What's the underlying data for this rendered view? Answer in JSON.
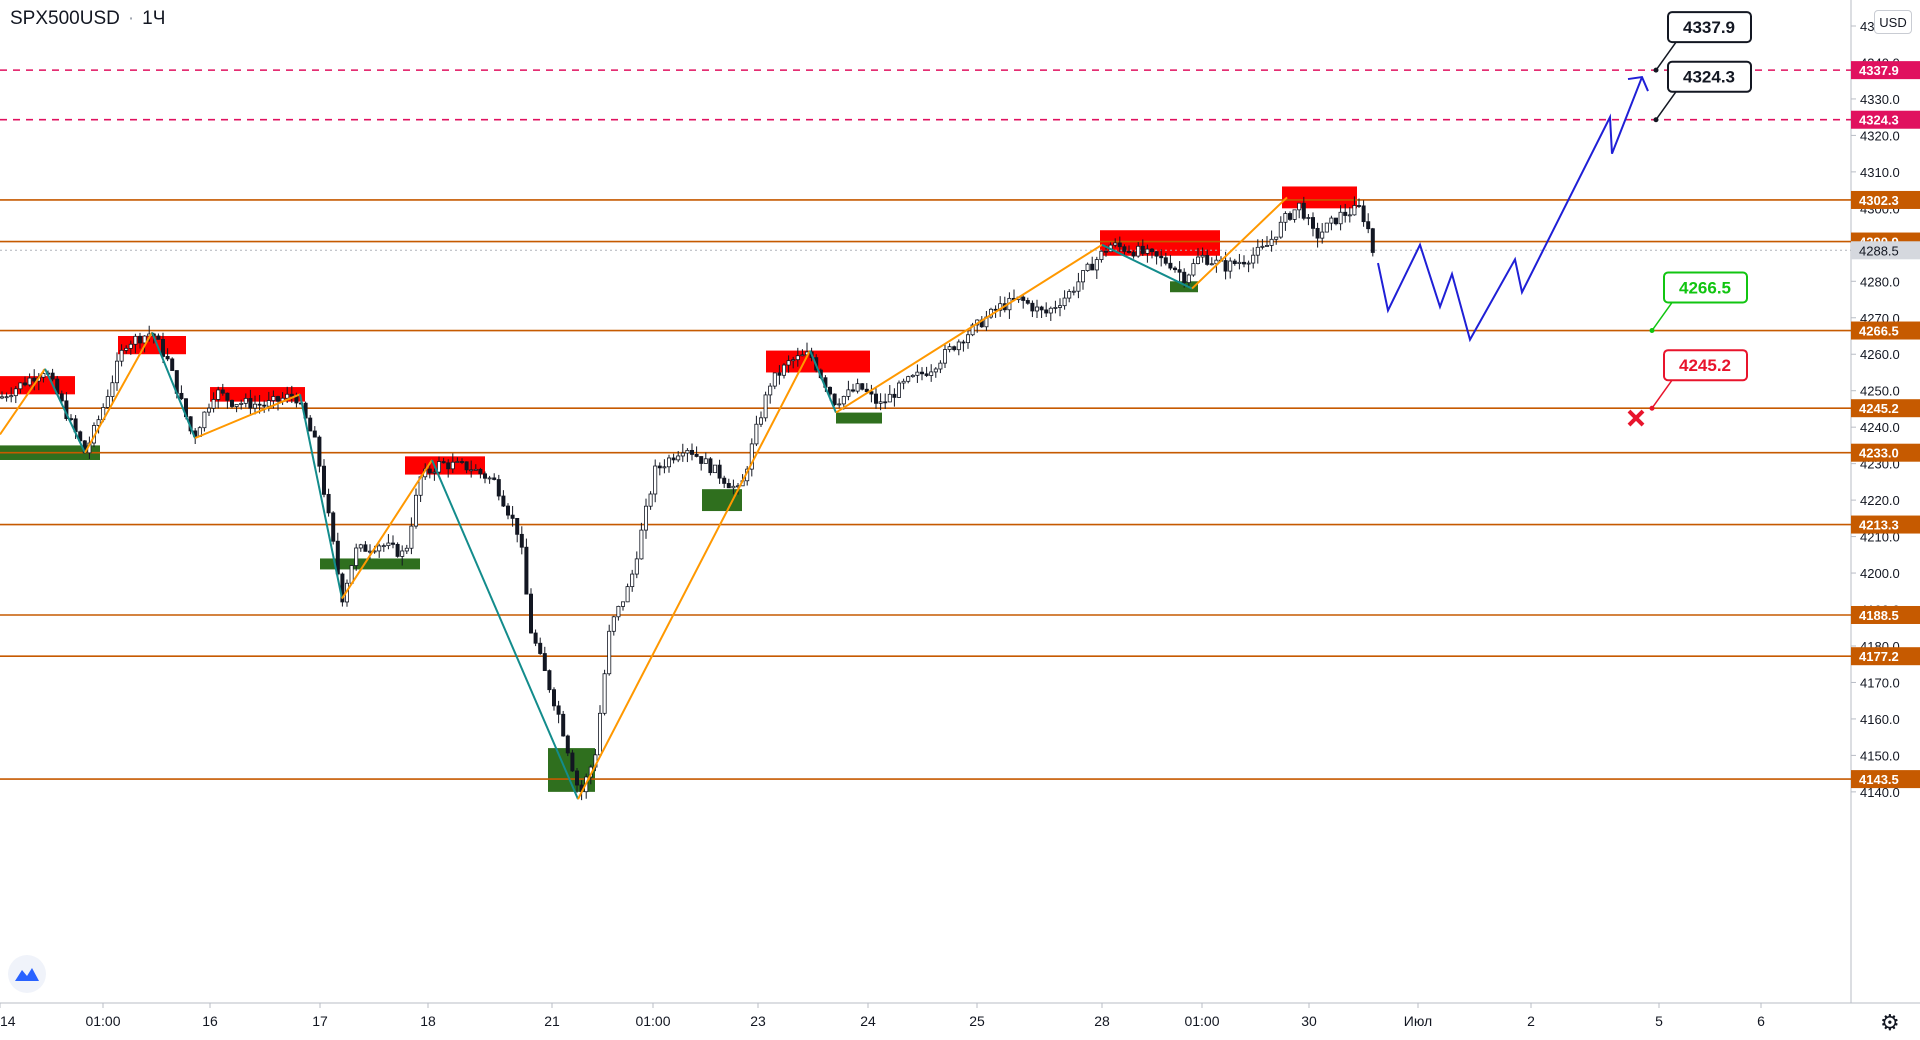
{
  "header": {
    "symbol": "SPX500USD",
    "separator": "·",
    "interval": "1Ч"
  },
  "currency": "USD",
  "colors": {
    "level": "#c65a00",
    "target": "#e0115f",
    "zigzag_up": "#ff9800",
    "zigzag_down": "#138c8c",
    "bull_zone": "#2f6f1e",
    "bear_zone": "#ff0000",
    "forecast": "#1f1fd6",
    "candle": "#131722",
    "last_price": "#b0b3ba",
    "callout_green": "#11c511",
    "callout_red": "#e8142c"
  },
  "chart_data": {
    "type": "candlestick",
    "ylim": [
      4137,
      4350
    ],
    "y_ticks": [
      4140,
      4150,
      4160,
      4170,
      4180,
      4190,
      4200,
      4210,
      4220,
      4230,
      4240,
      4250,
      4260,
      4270,
      4280,
      4290,
      4300,
      4310,
      4320,
      4330,
      4340,
      4350
    ],
    "y_tick_labels": [
      "4140.0",
      "4150.0",
      "4160.0",
      "4170.0",
      "4180.0",
      "4190.0",
      "4200.0",
      "4210.0",
      "4220.0",
      "4230.0",
      "4240.0",
      "4250.0",
      "4260.0",
      "4270.0",
      "4280.0",
      "4290.0",
      "4300.0",
      "4310.0",
      "4320.0",
      "4330.0",
      "4340.0",
      "4350.0"
    ],
    "x_range": [
      0,
      1851
    ],
    "x_ticks": [
      {
        "x": 0,
        "label": "14"
      },
      {
        "x": 103,
        "label": "01:00"
      },
      {
        "x": 210,
        "label": "16"
      },
      {
        "x": 320,
        "label": "17"
      },
      {
        "x": 428,
        "label": "18"
      },
      {
        "x": 552,
        "label": "21"
      },
      {
        "x": 653,
        "label": "01:00"
      },
      {
        "x": 758,
        "label": "23"
      },
      {
        "x": 868,
        "label": "24"
      },
      {
        "x": 977,
        "label": "25"
      },
      {
        "x": 1102,
        "label": "28"
      },
      {
        "x": 1202,
        "label": "01:00"
      },
      {
        "x": 1309,
        "label": "30"
      },
      {
        "x": 1418,
        "label": "Июл"
      },
      {
        "x": 1531,
        "label": "2"
      },
      {
        "x": 1659,
        "label": "5"
      },
      {
        "x": 1761,
        "label": "6"
      }
    ],
    "price_path": [
      [
        0,
        4248
      ],
      [
        45,
        4256
      ],
      [
        85,
        4233
      ],
      [
        100,
        4243
      ],
      [
        125,
        4263
      ],
      [
        152,
        4266
      ],
      [
        168,
        4258
      ],
      [
        193,
        4237
      ],
      [
        215,
        4250
      ],
      [
        232,
        4247
      ],
      [
        265,
        4246
      ],
      [
        295,
        4249
      ],
      [
        316,
        4235
      ],
      [
        330,
        4213
      ],
      [
        342,
        4193
      ],
      [
        355,
        4206
      ],
      [
        380,
        4208
      ],
      [
        405,
        4205
      ],
      [
        420,
        4226
      ],
      [
        440,
        4230
      ],
      [
        470,
        4229
      ],
      [
        495,
        4225
      ],
      [
        520,
        4210
      ],
      [
        530,
        4185
      ],
      [
        560,
        4160
      ],
      [
        580,
        4139
      ],
      [
        595,
        4150
      ],
      [
        610,
        4185
      ],
      [
        630,
        4197
      ],
      [
        655,
        4228
      ],
      [
        685,
        4235
      ],
      [
        715,
        4228
      ],
      [
        740,
        4222
      ],
      [
        755,
        4238
      ],
      [
        770,
        4252
      ],
      [
        790,
        4258
      ],
      [
        810,
        4260
      ],
      [
        835,
        4247
      ],
      [
        860,
        4251
      ],
      [
        880,
        4246
      ],
      [
        905,
        4252
      ],
      [
        930,
        4256
      ],
      [
        960,
        4264
      ],
      [
        1000,
        4273
      ],
      [
        1020,
        4275
      ],
      [
        1045,
        4271
      ],
      [
        1070,
        4277
      ],
      [
        1090,
        4284
      ],
      [
        1110,
        4290
      ],
      [
        1140,
        4288
      ],
      [
        1170,
        4285
      ],
      [
        1185,
        4281
      ],
      [
        1200,
        4287
      ],
      [
        1225,
        4284
      ],
      [
        1245,
        4286
      ],
      [
        1265,
        4289
      ],
      [
        1285,
        4297
      ],
      [
        1300,
        4301
      ],
      [
        1315,
        4292
      ],
      [
        1340,
        4298
      ],
      [
        1360,
        4300
      ],
      [
        1370,
        4293
      ],
      [
        1373,
        4288
      ]
    ],
    "levels": [
      4302.3,
      4290.9,
      4266.5,
      4245.2,
      4233.0,
      4213.3,
      4188.5,
      4177.2,
      4143.5
    ],
    "level_labels": [
      "4302.3",
      "4290.9",
      "4266.5",
      "4245.2",
      "4233.0",
      "4213.3",
      "4188.5",
      "4177.2",
      "4143.5"
    ],
    "targets": [
      4337.9,
      4324.3
    ],
    "target_labels": [
      "4337.9",
      "4324.3"
    ],
    "last_price": 4288.5,
    "last_price_label": "4288.5",
    "zigzag": [
      [
        0,
        4238
      ],
      [
        45,
        4256
      ],
      [
        85,
        4233
      ],
      [
        152,
        4266
      ],
      [
        195,
        4237
      ],
      [
        300,
        4249
      ],
      [
        342,
        4193
      ],
      [
        432,
        4231
      ],
      [
        578,
        4138
      ],
      [
        810,
        4261
      ],
      [
        836,
        4244
      ],
      [
        1102,
        4290
      ],
      [
        1192,
        4278
      ],
      [
        1287,
        4303
      ]
    ],
    "bull_zones": [
      [
        0,
        100,
        4231,
        4235
      ],
      [
        320,
        420,
        4201,
        4204
      ],
      [
        548,
        595,
        4140,
        4152
      ],
      [
        702,
        742,
        4217,
        4223
      ],
      [
        836,
        882,
        4241,
        4244
      ],
      [
        1170,
        1198,
        4277,
        4280
      ]
    ],
    "bear_zones": [
      [
        0,
        75,
        4249,
        4254
      ],
      [
        118,
        186,
        4260,
        4265
      ],
      [
        210,
        305,
        4247,
        4251
      ],
      [
        405,
        485,
        4227,
        4232
      ],
      [
        766,
        870,
        4255,
        4261
      ],
      [
        1100,
        1220,
        4287,
        4294
      ],
      [
        1282,
        1357,
        4300,
        4306
      ]
    ],
    "forecast": [
      [
        1378,
        4285
      ],
      [
        1388,
        4272
      ],
      [
        1420,
        4290
      ],
      [
        1440,
        4273
      ],
      [
        1452,
        4282
      ],
      [
        1470,
        4264
      ],
      [
        1515,
        4286
      ],
      [
        1522,
        4277
      ],
      [
        1610,
        4325
      ],
      [
        1612,
        4315
      ],
      [
        1642,
        4336
      ]
    ],
    "callouts": [
      {
        "label": "4337.9",
        "x": 1656,
        "y": 4337.9,
        "style": "black"
      },
      {
        "label": "4324.3",
        "x": 1656,
        "y": 4324.3,
        "style": "black"
      },
      {
        "label": "4266.5",
        "x": 1652,
        "y": 4266.5,
        "style": "green"
      },
      {
        "label": "4245.2",
        "x": 1652,
        "y": 4245.2,
        "style": "red"
      }
    ],
    "stop_marker": {
      "x": 1636,
      "y": 4242.5
    }
  }
}
